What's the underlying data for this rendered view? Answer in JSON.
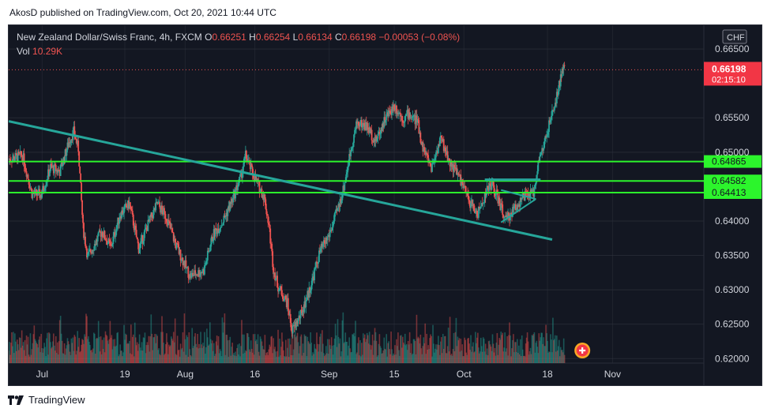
{
  "publisher_line": "AkosD published on TradingView.com, Oct 20, 2021 10:44 UTC",
  "footer_brand": "TradingView",
  "legend": {
    "symbol": "New Zealand Dollar/Swiss Franc, 4h, FXCM",
    "o_label": "O",
    "o_value": "0.66251",
    "h_label": "H",
    "h_value": "0.66254",
    "l_label": "L",
    "l_value": "0.66134",
    "c_label": "C",
    "c_value": "0.66198",
    "change": "−0.00053 (−0.08%)",
    "vol_label": "Vol",
    "vol_value": "10.29K"
  },
  "currency_badge": "CHF",
  "price_tag": {
    "price": "0.66198",
    "countdown": "02:15:10"
  },
  "colors": {
    "bg": "#131722",
    "grid": "#363a45",
    "up": "#26a69a",
    "down": "#ef5350",
    "level": "#2cf52c",
    "trend": "#26a69a",
    "price_tag": "#f23645",
    "text": "#d1d4dc"
  },
  "chart_data": {
    "type": "candlestick",
    "title": "New Zealand Dollar/Swiss Franc, 4h, FXCM",
    "y_axis": {
      "ticks": [
        "0.66500",
        "0.65500",
        "0.65000",
        "0.64000",
        "0.63500",
        "0.63000",
        "0.62500",
        "0.62000"
      ],
      "ylim": [
        0.6198,
        0.6657
      ]
    },
    "x_axis": {
      "ticks": [
        "Jul",
        "19",
        "Aug",
        "16",
        "Sep",
        "15",
        "Oct",
        "18",
        "Nov"
      ]
    },
    "horizontal_levels": [
      {
        "price": 0.64865,
        "label": "0.64865"
      },
      {
        "price": 0.64582,
        "label": "0.64582"
      },
      {
        "price": 0.64413,
        "label": "0.64413"
      }
    ],
    "current_price": 0.66198,
    "trendline": {
      "start": [
        "Jun 24",
        0.6545
      ],
      "end": [
        "Oct 19",
        0.6373
      ]
    },
    "triangle_pattern": {
      "top": 0.646,
      "apex": 0.6432,
      "bottom_start": 0.6398
    }
  }
}
